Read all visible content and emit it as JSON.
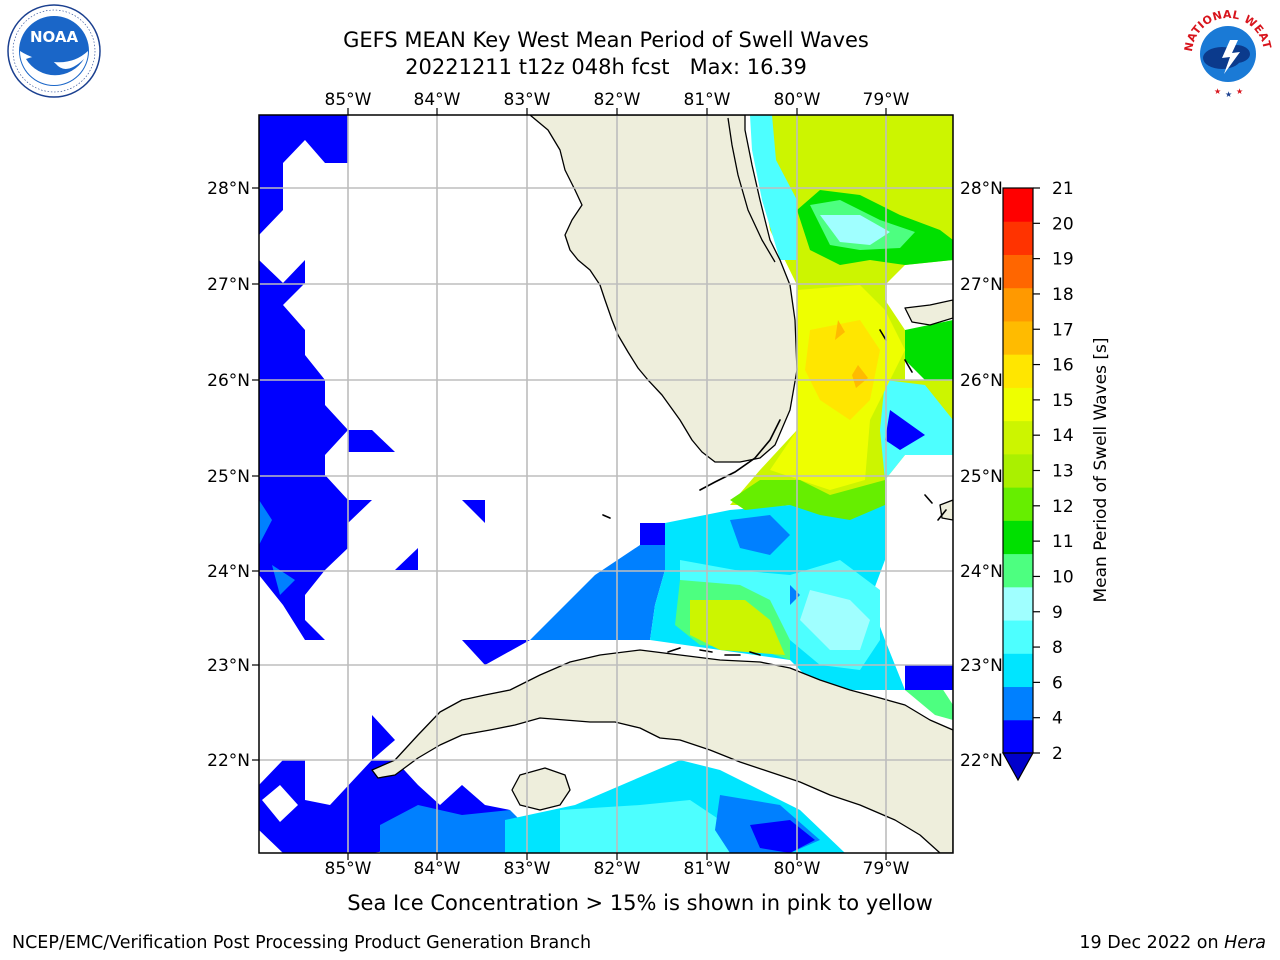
{
  "title": {
    "line1": "GEFS MEAN Key West Mean Period of Swell Waves",
    "line2": "20221211 t12z 048h fcst   Max: 16.39"
  },
  "logos": {
    "left": {
      "name": "NOAA",
      "ring_text": "NATIONAL OCEANIC AND ATMOSPHERIC ADMINISTRATION · U.S. DEPARTMENT OF COMMERCE"
    },
    "right": {
      "name": "NATIONAL WEATHER SERVICE"
    }
  },
  "map": {
    "lon_labels": [
      "85°W",
      "84°W",
      "83°W",
      "82°W",
      "81°W",
      "80°W",
      "79°W"
    ],
    "lat_labels": [
      "28°N",
      "27°N",
      "26°N",
      "25°N",
      "24°N",
      "23°N",
      "22°N"
    ],
    "extent": {
      "lon_min": -86.0,
      "lon_max": -78.25,
      "lat_min": 21.0,
      "lat_max": 28.75
    },
    "land_color": "#eeeedc",
    "grid_color": "#bdbdbd"
  },
  "colorbar": {
    "label": "Mean Period of Swell Waves [s]",
    "ticks": [
      "21",
      "20",
      "19",
      "18",
      "17",
      "16",
      "15",
      "14",
      "13",
      "12",
      "11",
      "10",
      "9",
      "8",
      "6",
      "4",
      "2"
    ],
    "bins": [
      {
        "from": 2,
        "to": 4,
        "color": "#0000ff"
      },
      {
        "from": 4,
        "to": 6,
        "color": "#0080ff"
      },
      {
        "from": 6,
        "to": 7,
        "color": "#00e5ff"
      },
      {
        "from": 7,
        "to": 8,
        "color": "#4dffff"
      },
      {
        "from": 8,
        "to": 9,
        "color": "#a0ffff"
      },
      {
        "from": 9,
        "to": 10,
        "color": "#4dff80"
      },
      {
        "from": 10,
        "to": 11,
        "color": "#00e000"
      },
      {
        "from": 11,
        "to": 12,
        "color": "#66ee00"
      },
      {
        "from": 12,
        "to": 13,
        "color": "#aaf000"
      },
      {
        "from": 13,
        "to": 14,
        "color": "#ccf500"
      },
      {
        "from": 14,
        "to": 15,
        "color": "#eeff00"
      },
      {
        "from": 15,
        "to": 16,
        "color": "#ffe600"
      },
      {
        "from": 16,
        "to": 17,
        "color": "#ffbb00"
      },
      {
        "from": 17,
        "to": 18,
        "color": "#ff9900"
      },
      {
        "from": 18,
        "to": 19,
        "color": "#ff6600"
      },
      {
        "from": 19,
        "to": 20,
        "color": "#ff3300"
      },
      {
        "from": 20,
        "to": 21,
        "color": "#ff0000"
      }
    ],
    "under_color": "#0000cc"
  },
  "chart_data": {
    "type": "heatmap",
    "title": "GEFS MEAN Key West Mean Period of Swell Waves",
    "subtitle": "20221211 t12z 048h fcst   Max: 16.39",
    "variable": "Mean Period of Swell Waves [s]",
    "max": 16.39,
    "lon_range": [
      -86.0,
      -78.25
    ],
    "lat_range": [
      21.0,
      28.75
    ],
    "levels": [
      2,
      4,
      6,
      7,
      8,
      9,
      10,
      11,
      12,
      13,
      14,
      15,
      16,
      17,
      18,
      19,
      20,
      21
    ],
    "regions": [
      {
        "area": "Gulf of Mexico west edge",
        "value_range": [
          2,
          4
        ]
      },
      {
        "area": "Straits of Florida / Florida Keys",
        "value_range": [
          4,
          9
        ]
      },
      {
        "area": "South of Florida Keys near 81W 23.5N",
        "value_range": [
          12,
          14
        ]
      },
      {
        "area": "Atlantic east of Florida 26N",
        "value_range": [
          14,
          16.39
        ]
      },
      {
        "area": "Atlantic north of Bahamas 27.5N",
        "value_range": [
          9,
          14
        ]
      },
      {
        "area": "Caribbean south of Cuba",
        "value_range": [
          4,
          8
        ]
      }
    ],
    "grid": true
  },
  "notes": {
    "sea_ice": "Sea Ice Concentration > 15% is shown in pink to yellow"
  },
  "footer": {
    "left": "NCEP/EMC/Verification Post Processing Product Generation Branch",
    "right_prefix": "19 Dec 2022 on ",
    "right_host": "Hera"
  }
}
